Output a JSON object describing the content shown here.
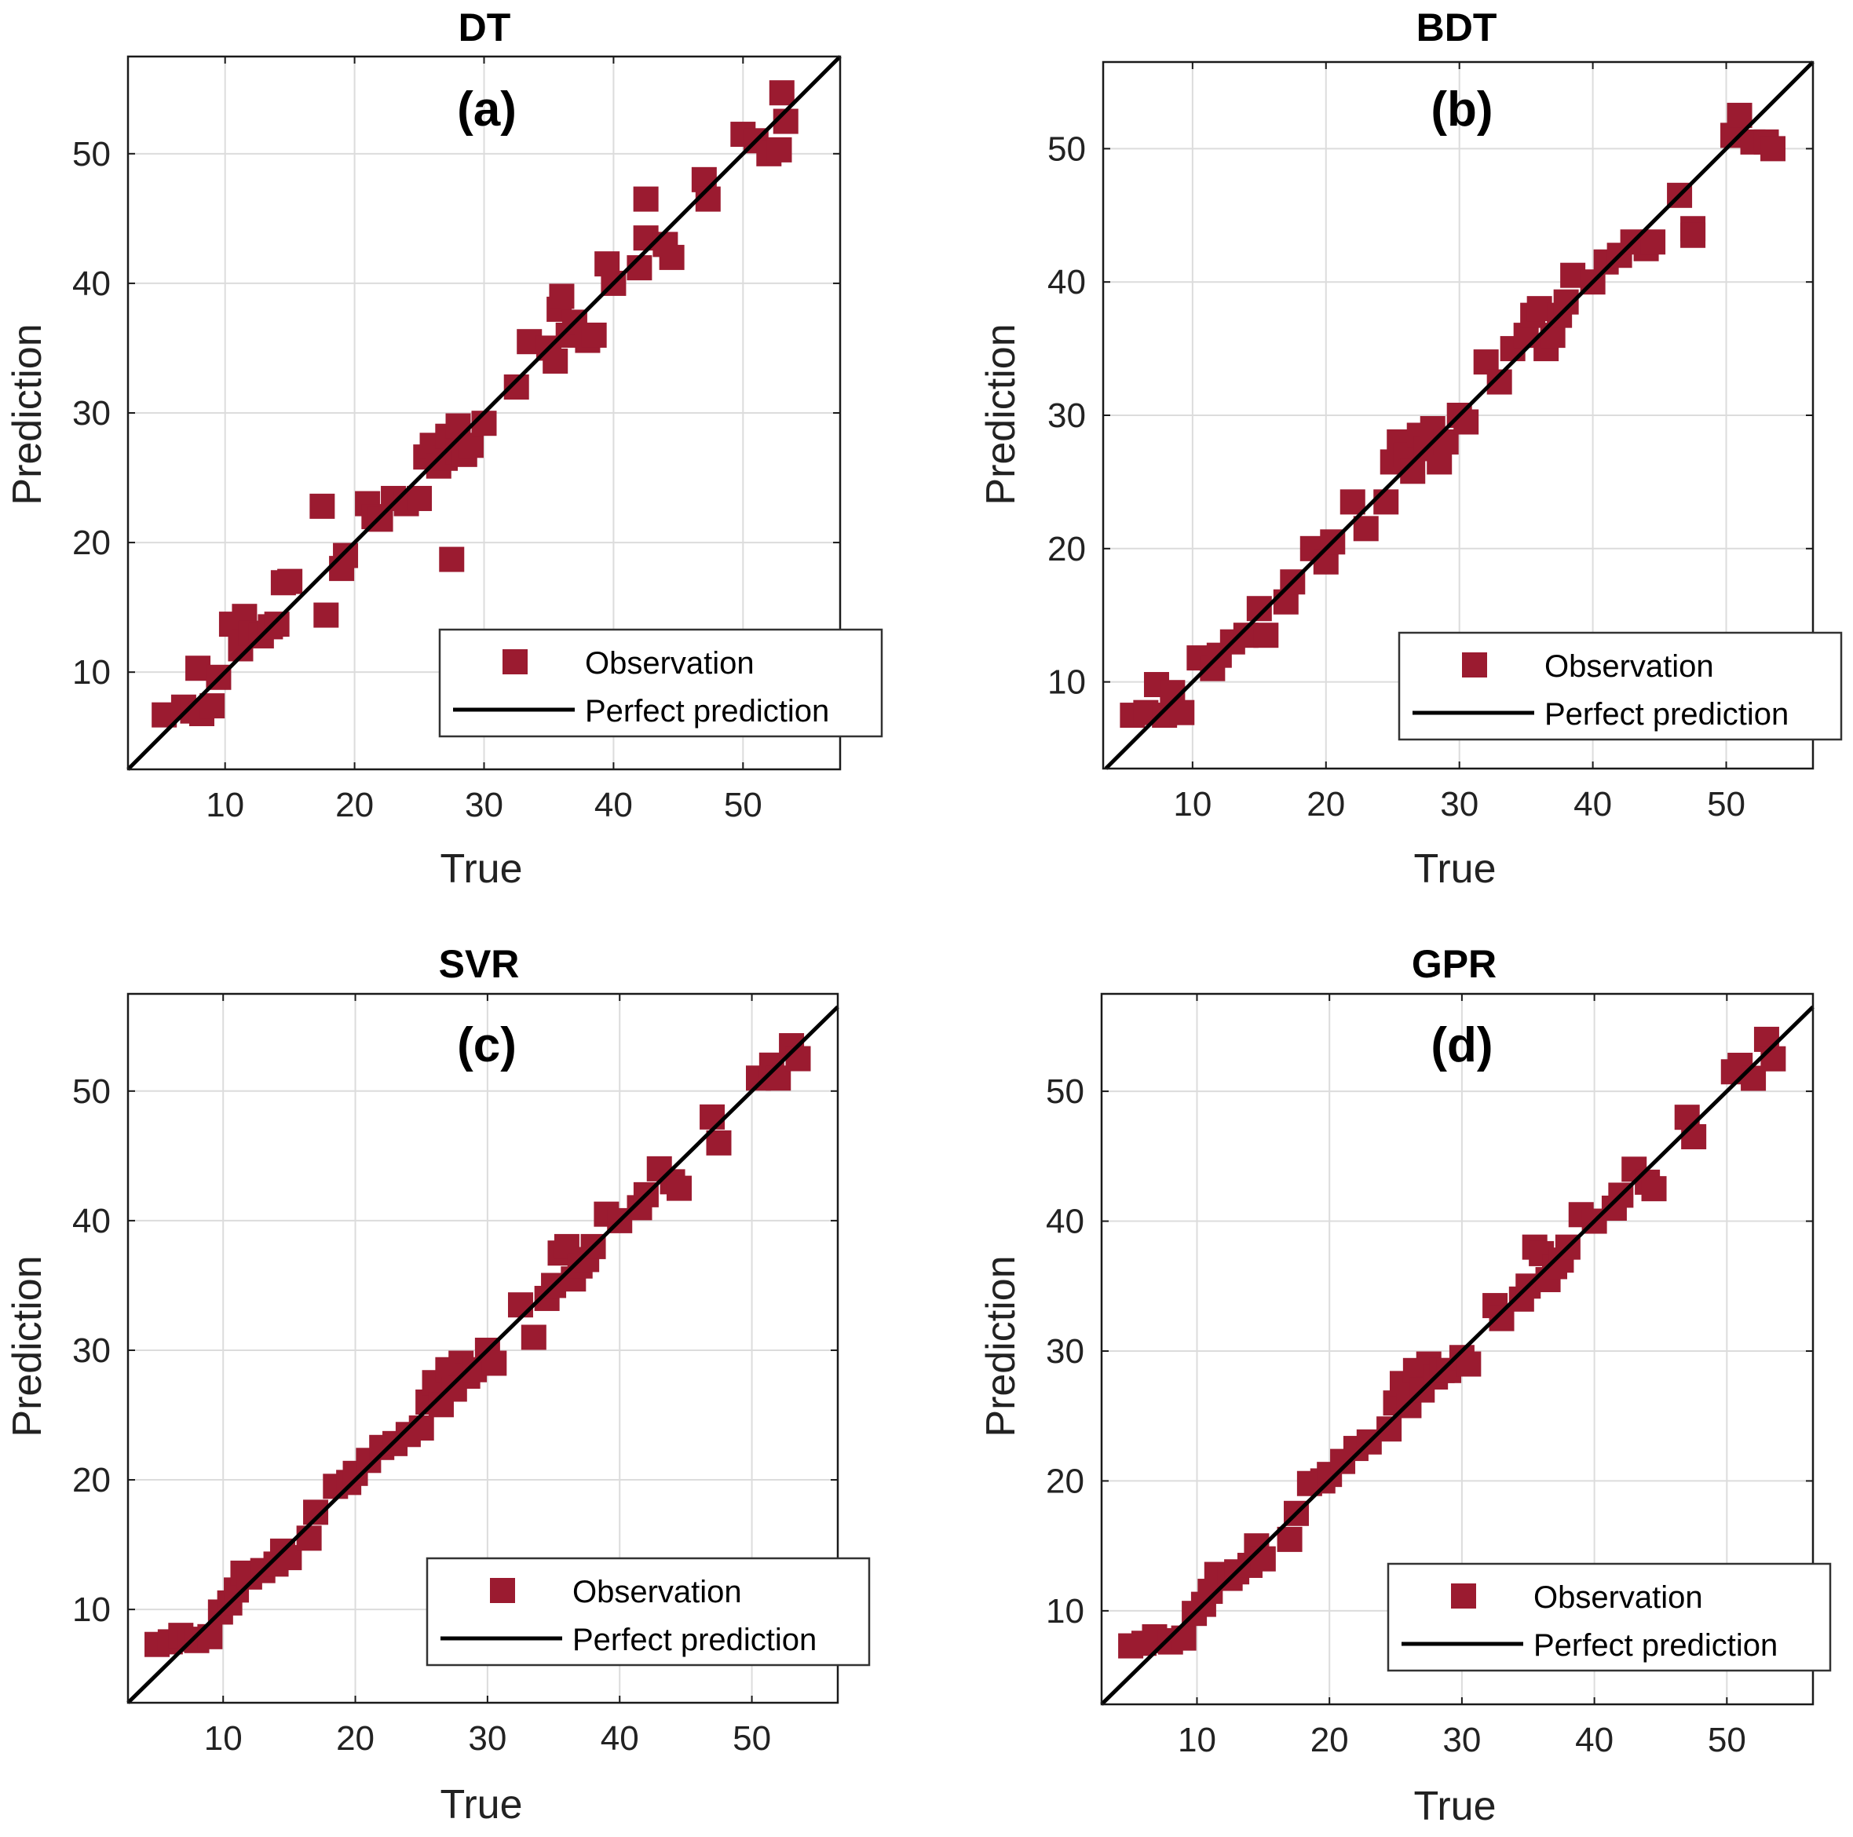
{
  "colors": {
    "marker": "#9b1b30",
    "line": "#000000",
    "grid": "#dcdcdc"
  },
  "chart_data": [
    {
      "type": "scatter",
      "title": "DT",
      "panel_label": "(a)",
      "xlabel": "True",
      "ylabel": "Prediction",
      "xlim": [
        2.5,
        57.5
      ],
      "ylim": [
        2.5,
        57.5
      ],
      "xticks": [
        10,
        20,
        30,
        40,
        50
      ],
      "yticks": [
        10,
        20,
        30,
        40,
        50
      ],
      "grid": true,
      "legend": [
        "Observation",
        "Perfect prediction"
      ],
      "legend_position": "bottom-right",
      "series": [
        {
          "name": "Observation",
          "x": [
            5.3,
            6.8,
            7.5,
            8.2,
            9.0,
            7.9,
            9.5,
            10.5,
            11.2,
            11.5,
            12.0,
            12.8,
            13.5,
            14.0,
            14.5,
            15.0,
            17.5,
            17.8,
            19.0,
            19.3,
            21.0,
            21.5,
            22.0,
            23.0,
            24.0,
            25.0,
            25.5,
            26.0,
            26.5,
            27.0,
            27.2,
            27.5,
            28.0,
            28.0,
            28.5,
            29.0,
            30.0,
            32.5,
            33.5,
            35.0,
            35.5,
            35.8,
            36.0,
            36.5,
            37.0,
            38.0,
            38.5,
            39.5,
            40.0,
            42.0,
            42.5,
            42.5,
            44.0,
            44.5,
            47.0,
            47.3,
            50.0,
            51.0,
            52.0,
            52.8,
            53.0,
            53.3
          ],
          "y": [
            6.7,
            7.3,
            7.0,
            6.8,
            7.4,
            10.3,
            9.6,
            13.7,
            11.8,
            14.3,
            13.0,
            12.8,
            13.5,
            13.7,
            16.9,
            17.0,
            22.8,
            14.4,
            18.0,
            19.0,
            23.0,
            22.0,
            21.8,
            23.4,
            23.0,
            23.4,
            26.6,
            27.5,
            25.9,
            26.5,
            28.2,
            18.7,
            29.0,
            27.0,
            26.8,
            27.5,
            29.2,
            32.0,
            35.5,
            35.0,
            34.0,
            38.0,
            39.0,
            36.0,
            37.0,
            35.6,
            36.0,
            41.5,
            40.0,
            41.2,
            46.5,
            43.5,
            43.0,
            42.0,
            48.0,
            46.5,
            51.5,
            51.0,
            50.0,
            50.3,
            54.7,
            52.5
          ]
        }
      ]
    },
    {
      "type": "scatter",
      "title": "BDT",
      "panel_label": "(b)",
      "xlabel": "True",
      "ylabel": "Prediction",
      "xlim": [
        3.3,
        56.5
      ],
      "ylim": [
        3.5,
        56.5
      ],
      "xticks": [
        10,
        20,
        30,
        40,
        50
      ],
      "yticks": [
        10,
        20,
        30,
        40,
        50
      ],
      "grid": true,
      "legend": [
        "Observation",
        "Perfect prediction"
      ],
      "legend_position": "bottom-right",
      "series": [
        {
          "name": "Observation",
          "x": [
            5.5,
            6.5,
            7.3,
            7.9,
            8.5,
            9.2,
            10.5,
            11.5,
            12.0,
            13.0,
            14.0,
            15.0,
            15.5,
            17.0,
            17.5,
            19.0,
            20.0,
            20.5,
            22.0,
            23.0,
            24.5,
            25.0,
            25.5,
            26.0,
            26.5,
            27.0,
            27.5,
            28.0,
            28.5,
            29.0,
            30.0,
            30.5,
            32.0,
            33.0,
            34.0,
            35.0,
            35.5,
            36.0,
            36.5,
            37.0,
            37.5,
            38.0,
            38.5,
            40.0,
            41.0,
            42.0,
            43.0,
            44.0,
            44.5,
            46.5,
            47.5,
            47.5,
            50.5,
            51.0,
            52.0,
            53.0,
            53.5
          ],
          "y": [
            7.5,
            7.7,
            9.8,
            7.5,
            9.2,
            7.7,
            11.8,
            11.0,
            12.0,
            13.0,
            13.5,
            15.5,
            13.5,
            16.0,
            17.5,
            20.0,
            19.0,
            20.5,
            23.5,
            21.5,
            23.5,
            26.5,
            28.0,
            27.0,
            25.8,
            28.5,
            27.5,
            29.0,
            26.5,
            28.0,
            30.0,
            29.5,
            34.0,
            32.5,
            35.0,
            36.0,
            37.5,
            38.0,
            35.0,
            36.0,
            37.5,
            38.5,
            40.5,
            40.0,
            41.5,
            42.0,
            43.0,
            42.5,
            43.0,
            46.5,
            44.0,
            43.5,
            51.0,
            52.5,
            50.5,
            50.5,
            50.0
          ]
        }
      ]
    },
    {
      "type": "scatter",
      "title": "SVR",
      "panel_label": "(c)",
      "xlabel": "True",
      "ylabel": "Prediction",
      "xlim": [
        2.8,
        56.5
      ],
      "ylim": [
        2.8,
        57.5
      ],
      "xticks": [
        10,
        20,
        30,
        40,
        50
      ],
      "yticks": [
        10,
        20,
        30,
        40,
        50
      ],
      "grid": true,
      "legend": [
        "Observation",
        "Perfect prediction"
      ],
      "legend_position": "bottom-right",
      "series": [
        {
          "name": "Observation",
          "x": [
            5.0,
            6.0,
            6.8,
            7.5,
            8.0,
            9.0,
            9.8,
            10.5,
            11.0,
            11.5,
            12.0,
            13.0,
            14.0,
            14.5,
            15.0,
            16.5,
            17.0,
            18.5,
            19.5,
            20.0,
            21.0,
            22.0,
            23.0,
            24.0,
            25.0,
            25.5,
            26.0,
            26.5,
            27.0,
            27.5,
            28.0,
            28.5,
            29.0,
            30.0,
            30.5,
            32.5,
            33.5,
            34.5,
            35.0,
            35.5,
            36.0,
            36.5,
            37.0,
            37.5,
            38.0,
            39.0,
            40.0,
            41.5,
            42.0,
            43.0,
            44.0,
            44.5,
            47.0,
            47.5,
            50.5,
            51.5,
            52.0,
            53.0,
            53.5
          ],
          "y": [
            7.3,
            7.5,
            8.0,
            7.7,
            7.6,
            7.9,
            9.8,
            10.5,
            11.5,
            12.8,
            12.5,
            13.0,
            13.5,
            14.5,
            14.0,
            15.5,
            17.5,
            19.5,
            19.8,
            20.5,
            21.5,
            22.5,
            22.8,
            23.5,
            24.0,
            26.0,
            27.5,
            25.8,
            28.5,
            27.0,
            29.0,
            28.0,
            28.5,
            30.0,
            29.0,
            33.5,
            31.0,
            34.0,
            35.0,
            37.5,
            38.0,
            35.5,
            36.5,
            37.0,
            38.0,
            40.5,
            40.0,
            41.0,
            42.0,
            44.0,
            43.0,
            42.5,
            48.0,
            46.0,
            51.0,
            52.0,
            51.0,
            53.5,
            52.5
          ]
        }
      ]
    },
    {
      "type": "scatter",
      "title": "GPR",
      "panel_label": "(d)",
      "xlabel": "True",
      "ylabel": "Prediction",
      "xlim": [
        2.8,
        56.5
      ],
      "ylim": [
        2.8,
        57.5
      ],
      "xticks": [
        10,
        20,
        30,
        40,
        50
      ],
      "yticks": [
        10,
        20,
        30,
        40,
        50
      ],
      "grid": true,
      "legend": [
        "Observation",
        "Perfect prediction"
      ],
      "legend_position": "bottom-right",
      "series": [
        {
          "name": "Observation",
          "x": [
            5.0,
            6.0,
            6.8,
            7.5,
            8.0,
            9.0,
            9.8,
            10.5,
            11.0,
            11.5,
            12.5,
            13.0,
            14.0,
            14.5,
            15.0,
            17.0,
            17.5,
            18.5,
            19.5,
            20.0,
            21.0,
            22.0,
            23.0,
            24.5,
            25.0,
            25.5,
            26.0,
            26.5,
            27.0,
            27.5,
            28.0,
            28.5,
            29.0,
            30.0,
            30.5,
            32.5,
            33.0,
            34.5,
            35.0,
            35.5,
            36.0,
            36.5,
            37.0,
            37.5,
            38.0,
            39.0,
            40.0,
            41.5,
            42.0,
            43.0,
            44.0,
            44.5,
            47.0,
            47.5,
            50.5,
            51.0,
            52.0,
            53.0,
            53.5
          ],
          "y": [
            7.3,
            7.5,
            8.0,
            7.7,
            7.6,
            7.9,
            9.8,
            10.5,
            11.5,
            12.8,
            12.5,
            13.0,
            13.5,
            15.0,
            14.0,
            15.5,
            17.5,
            19.8,
            20.0,
            20.5,
            21.5,
            22.5,
            23.0,
            24.0,
            26.0,
            27.5,
            25.8,
            28.5,
            27.0,
            29.0,
            28.0,
            28.5,
            28.5,
            29.5,
            29.0,
            33.5,
            32.5,
            34.0,
            35.0,
            38.0,
            37.5,
            35.5,
            36.5,
            37.0,
            38.0,
            40.5,
            40.0,
            41.0,
            42.0,
            44.0,
            43.0,
            42.5,
            48.0,
            46.5,
            51.5,
            52.0,
            51.0,
            54.0,
            52.5
          ]
        }
      ]
    }
  ]
}
